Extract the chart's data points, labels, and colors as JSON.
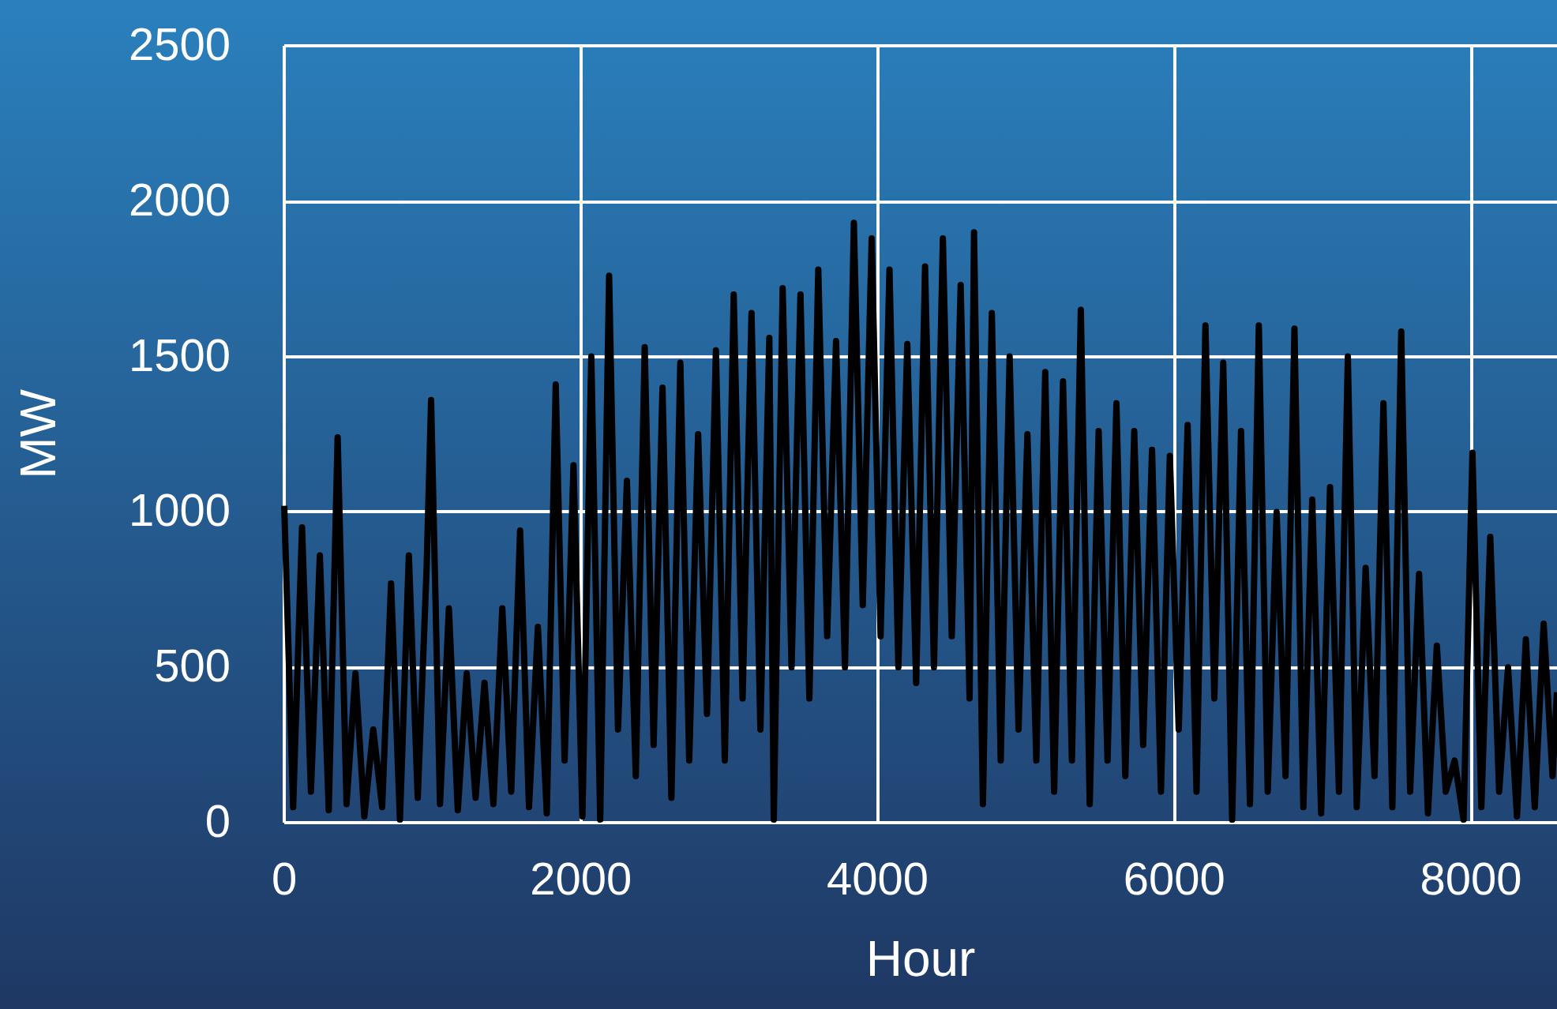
{
  "chart_data": {
    "type": "line",
    "xlabel": "Hour",
    "ylabel": "MW",
    "xlim": [
      0,
      8580
    ],
    "xticks": [
      0,
      2000,
      4000,
      6000,
      8000
    ],
    "ylim": [
      0,
      2500
    ],
    "yticks": [
      0,
      500,
      1000,
      1500,
      2000,
      2500
    ],
    "grid": true,
    "marker": "none",
    "line_style": "solid",
    "series": [
      {
        "color": "#000000",
        "x": [
          0,
          60,
          120,
          180,
          240,
          300,
          360,
          420,
          480,
          540,
          600,
          660,
          720,
          780,
          840,
          900,
          960,
          990,
          1050,
          1110,
          1170,
          1230,
          1290,
          1350,
          1410,
          1470,
          1530,
          1590,
          1650,
          1710,
          1770,
          1830,
          1890,
          1950,
          2010,
          2070,
          2130,
          2190,
          2250,
          2310,
          2370,
          2430,
          2490,
          2550,
          2610,
          2670,
          2730,
          2790,
          2850,
          2910,
          2970,
          3030,
          3090,
          3150,
          3210,
          3270,
          3300,
          3360,
          3420,
          3480,
          3540,
          3600,
          3660,
          3720,
          3780,
          3840,
          3900,
          3960,
          4020,
          4080,
          4140,
          4200,
          4260,
          4320,
          4380,
          4440,
          4500,
          4560,
          4620,
          4650,
          4710,
          4770,
          4830,
          4890,
          4950,
          5010,
          5070,
          5130,
          5190,
          5250,
          5310,
          5370,
          5430,
          5490,
          5550,
          5610,
          5670,
          5730,
          5790,
          5850,
          5910,
          5970,
          6030,
          6090,
          6150,
          6210,
          6270,
          6330,
          6390,
          6450,
          6510,
          6570,
          6630,
          6690,
          6750,
          6810,
          6870,
          6930,
          6990,
          7050,
          7110,
          7170,
          7230,
          7290,
          7350,
          7410,
          7470,
          7530,
          7590,
          7650,
          7710,
          7770,
          7830,
          7890,
          7950,
          8010,
          8070,
          8130,
          8190,
          8250,
          8310,
          8370,
          8430,
          8490,
          8550,
          8580
        ],
        "values": [
          1020,
          50,
          950,
          100,
          860,
          40,
          1240,
          60,
          480,
          20,
          300,
          50,
          770,
          10,
          860,
          80,
          820,
          1360,
          60,
          690,
          40,
          480,
          80,
          450,
          60,
          690,
          100,
          940,
          50,
          630,
          30,
          1410,
          200,
          1150,
          20,
          1500,
          10,
          1760,
          300,
          1100,
          150,
          1530,
          250,
          1400,
          80,
          1480,
          200,
          1250,
          350,
          1520,
          200,
          1700,
          400,
          1640,
          300,
          1560,
          10,
          1720,
          500,
          1700,
          400,
          1780,
          600,
          1550,
          500,
          1930,
          700,
          1880,
          600,
          1780,
          500,
          1540,
          450,
          1790,
          500,
          1880,
          600,
          1730,
          400,
          1900,
          60,
          1640,
          200,
          1500,
          300,
          1250,
          200,
          1450,
          100,
          1420,
          200,
          1650,
          60,
          1260,
          200,
          1350,
          150,
          1260,
          250,
          1200,
          100,
          1180,
          300,
          1280,
          100,
          1600,
          400,
          1480,
          10,
          1260,
          60,
          1600,
          100,
          1000,
          150,
          1590,
          50,
          1040,
          30,
          1080,
          100,
          1500,
          50,
          820,
          150,
          1350,
          50,
          1580,
          100,
          800,
          30,
          570,
          100,
          200,
          10,
          1190,
          50,
          920,
          100,
          500,
          20,
          590,
          50,
          640,
          150,
          420
        ]
      }
    ]
  }
}
